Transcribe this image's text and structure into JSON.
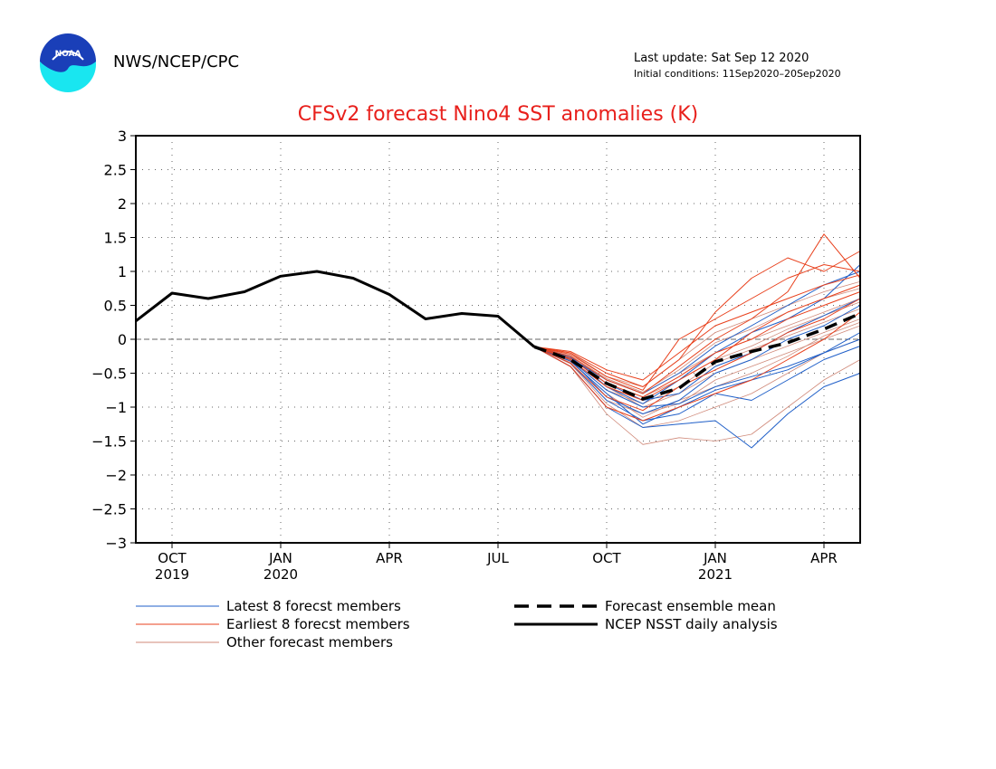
{
  "header": {
    "organization": "NWS/NCEP/CPC",
    "last_update": "Last update: Sat Sep 12 2020",
    "initial_conditions": "Initial conditions: 11Sep2020–20Sep2020",
    "logo_text": "NOAA"
  },
  "colors": {
    "title": "#e8201c",
    "latest": "#1f5fc8",
    "earliest": "#e8401c",
    "other": "#d08a7a",
    "analysis": "#000000",
    "logo_blue": "#1a3fb8",
    "logo_cyan": "#19e6f0"
  },
  "chart_data": {
    "type": "line",
    "title": "CFSv2 forecast Nino4 SST anomalies (K)",
    "ylabel": "",
    "xlabel": "",
    "ylim": [
      -3,
      3
    ],
    "yticks": [
      -3,
      -2.5,
      -2,
      -1.5,
      -1,
      -0.5,
      0,
      0.5,
      1,
      1.5,
      2,
      2.5,
      3
    ],
    "xlim": [
      "2019-09",
      "2021-05"
    ],
    "xticks": [
      {
        "month": "2019-10",
        "label": "OCT",
        "year_label": "2019"
      },
      {
        "month": "2020-01",
        "label": "JAN",
        "year_label": "2020"
      },
      {
        "month": "2020-04",
        "label": "APR",
        "year_label": ""
      },
      {
        "month": "2020-07",
        "label": "JUL",
        "year_label": ""
      },
      {
        "month": "2020-10",
        "label": "OCT",
        "year_label": ""
      },
      {
        "month": "2021-01",
        "label": "JAN",
        "year_label": "2021"
      },
      {
        "month": "2021-04",
        "label": "APR",
        "year_label": ""
      }
    ],
    "grid": true,
    "zero_line": true,
    "legend": [
      {
        "label": "Latest 8 forecst members",
        "style": "thin",
        "color_key": "latest"
      },
      {
        "label": "Earliest 8 forecst members",
        "style": "thin",
        "color_key": "earliest"
      },
      {
        "label": "Other forecast members",
        "style": "thin",
        "color_key": "other"
      },
      {
        "label": "Forecast ensemble mean",
        "style": "dashed",
        "color_key": "analysis"
      },
      {
        "label": "NCEP NSST daily analysis",
        "style": "solid",
        "color_key": "analysis"
      }
    ],
    "analysis_series": {
      "name": "NCEP NSST daily analysis",
      "x": [
        "2019-09",
        "2019-10",
        "2019-11",
        "2019-12",
        "2020-01",
        "2020-02",
        "2020-03",
        "2020-04",
        "2020-05",
        "2020-06",
        "2020-07",
        "2020-08"
      ],
      "values": [
        0.27,
        0.68,
        0.6,
        0.7,
        0.93,
        1.0,
        0.9,
        0.66,
        0.3,
        0.38,
        0.34,
        -0.11
      ]
    },
    "ensemble_mean": {
      "name": "Forecast ensemble mean",
      "x": [
        "2020-08",
        "2020-09",
        "2020-10",
        "2020-11",
        "2020-12",
        "2021-01",
        "2021-02",
        "2021-03",
        "2021-04",
        "2021-05"
      ],
      "values": [
        -0.11,
        -0.3,
        -0.65,
        -0.88,
        -0.72,
        -0.33,
        -0.18,
        -0.05,
        0.15,
        0.38
      ]
    },
    "members_x": [
      "2020-08",
      "2020-09",
      "2020-10",
      "2020-11",
      "2020-12",
      "2021-01",
      "2021-02",
      "2021-03",
      "2021-04",
      "2021-05"
    ],
    "members": {
      "latest": [
        [
          -0.11,
          -0.3,
          -0.75,
          -1.0,
          -0.95,
          -0.7,
          -0.55,
          -0.4,
          -0.2,
          0.0
        ],
        [
          -0.11,
          -0.35,
          -0.9,
          -1.2,
          -1.1,
          -0.8,
          -0.9,
          -0.6,
          -0.3,
          -0.1
        ],
        [
          -0.11,
          -0.4,
          -1.0,
          -1.3,
          -1.25,
          -1.2,
          -1.6,
          -1.1,
          -0.7,
          -0.5
        ],
        [
          -0.11,
          -0.25,
          -0.7,
          -0.95,
          -0.6,
          -0.2,
          0.1,
          0.3,
          0.6,
          1.1
        ],
        [
          -0.11,
          -0.3,
          -0.85,
          -1.1,
          -0.9,
          -0.5,
          -0.3,
          0.0,
          0.2,
          0.5
        ],
        [
          -0.11,
          -0.28,
          -0.6,
          -0.8,
          -0.5,
          -0.1,
          0.2,
          0.5,
          0.8,
          1.0
        ],
        [
          -0.11,
          -0.32,
          -0.8,
          -1.25,
          -1.0,
          -0.75,
          -0.6,
          -0.45,
          -0.2,
          0.1
        ],
        [
          -0.11,
          -0.27,
          -0.65,
          -0.9,
          -0.8,
          -0.4,
          -0.2,
          0.1,
          0.35,
          0.6
        ]
      ],
      "earliest": [
        [
          -0.11,
          -0.2,
          -0.5,
          -0.7,
          -0.3,
          0.4,
          0.9,
          1.2,
          1.0,
          1.3
        ],
        [
          -0.11,
          -0.25,
          -0.6,
          -0.8,
          -0.4,
          0.0,
          0.3,
          0.7,
          1.55,
          0.9
        ],
        [
          -0.11,
          -0.3,
          -0.7,
          -0.9,
          -0.6,
          -0.3,
          0.1,
          0.4,
          0.6,
          0.8
        ],
        [
          -0.11,
          -0.22,
          -0.55,
          -0.75,
          0.0,
          0.3,
          0.6,
          0.9,
          1.1,
          1.0
        ],
        [
          -0.11,
          -0.35,
          -0.85,
          -1.05,
          -0.7,
          -0.45,
          -0.2,
          0.1,
          0.3,
          0.6
        ],
        [
          -0.11,
          -0.28,
          -0.65,
          -0.85,
          -0.55,
          -0.2,
          0.0,
          0.3,
          0.5,
          0.7
        ],
        [
          -0.11,
          -0.18,
          -0.45,
          -0.6,
          -0.2,
          0.2,
          0.4,
          0.6,
          0.8,
          0.95
        ],
        [
          -0.11,
          -0.4,
          -1.0,
          -1.2,
          -1.0,
          -0.8,
          -0.6,
          -0.3,
          0.0,
          0.4
        ]
      ],
      "other": [
        [
          -0.11,
          -0.3,
          -0.7,
          -1.0,
          -0.8,
          -0.5,
          -0.3,
          -0.1,
          0.1,
          0.3
        ],
        [
          -0.11,
          -0.35,
          -0.9,
          -1.1,
          -0.95,
          -0.6,
          -0.4,
          -0.2,
          0.0,
          0.2
        ],
        [
          -0.11,
          -0.4,
          -1.1,
          -1.55,
          -1.45,
          -1.5,
          -1.4,
          -1.0,
          -0.6,
          -0.3
        ],
        [
          -0.11,
          -0.25,
          -0.6,
          -0.8,
          -0.5,
          -0.2,
          0.0,
          0.2,
          0.4,
          0.6
        ],
        [
          -0.11,
          -0.3,
          -0.75,
          -0.95,
          -0.7,
          -0.35,
          -0.15,
          0.05,
          0.25,
          0.45
        ],
        [
          -0.11,
          -0.2,
          -0.55,
          -0.7,
          -0.3,
          0.1,
          0.3,
          0.5,
          0.7,
          0.85
        ],
        [
          -0.11,
          -0.33,
          -0.8,
          -1.15,
          -0.9,
          -0.7,
          -0.5,
          -0.25,
          0.05,
          0.25
        ],
        [
          -0.11,
          -0.27,
          -0.65,
          -0.85,
          -0.6,
          -0.3,
          -0.1,
          0.15,
          0.35,
          0.55
        ],
        [
          -0.11,
          -0.36,
          -0.95,
          -1.3,
          -1.2,
          -1.0,
          -0.8,
          -0.5,
          -0.2,
          0.0
        ],
        [
          -0.11,
          -0.24,
          -0.58,
          -0.78,
          -0.45,
          -0.05,
          0.15,
          0.4,
          0.6,
          0.75
        ]
      ]
    }
  }
}
